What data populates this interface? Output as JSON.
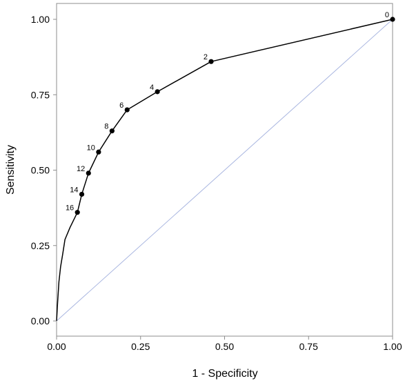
{
  "chart_data": {
    "type": "line",
    "title": "",
    "xlabel": "1 - Specificity",
    "ylabel": "Sensitivity",
    "xlim": [
      0,
      1
    ],
    "ylim": [
      0,
      1
    ],
    "x_ticks": [
      "0.00",
      "0.25",
      "0.50",
      "0.75",
      "1.00"
    ],
    "y_ticks": [
      "0.00",
      "0.25",
      "0.50",
      "0.75",
      "1.00"
    ],
    "grid": false,
    "legend": "none",
    "series": [
      {
        "role": "roc-curve",
        "color": "#000000",
        "x": [
          0.0,
          0.003,
          0.007,
          0.012,
          0.018,
          0.025,
          0.04,
          0.062,
          0.075,
          0.095,
          0.125,
          0.165,
          0.21,
          0.3,
          0.46,
          1.0
        ],
        "y": [
          0.0,
          0.06,
          0.13,
          0.18,
          0.22,
          0.27,
          0.31,
          0.36,
          0.42,
          0.49,
          0.56,
          0.63,
          0.7,
          0.76,
          0.86,
          1.0
        ]
      },
      {
        "role": "reference-line",
        "color": "#a9b6e0",
        "x": [
          0,
          1
        ],
        "y": [
          0,
          1
        ]
      }
    ],
    "labeled_points": [
      {
        "label": "0",
        "x": 1.0,
        "y": 1.0
      },
      {
        "label": "2",
        "x": 0.46,
        "y": 0.86
      },
      {
        "label": "4",
        "x": 0.3,
        "y": 0.76
      },
      {
        "label": "6",
        "x": 0.21,
        "y": 0.7
      },
      {
        "label": "8",
        "x": 0.165,
        "y": 0.63
      },
      {
        "label": "10",
        "x": 0.125,
        "y": 0.56
      },
      {
        "label": "12",
        "x": 0.095,
        "y": 0.49
      },
      {
        "label": "14",
        "x": 0.075,
        "y": 0.42
      },
      {
        "label": "16",
        "x": 0.062,
        "y": 0.36
      }
    ]
  }
}
